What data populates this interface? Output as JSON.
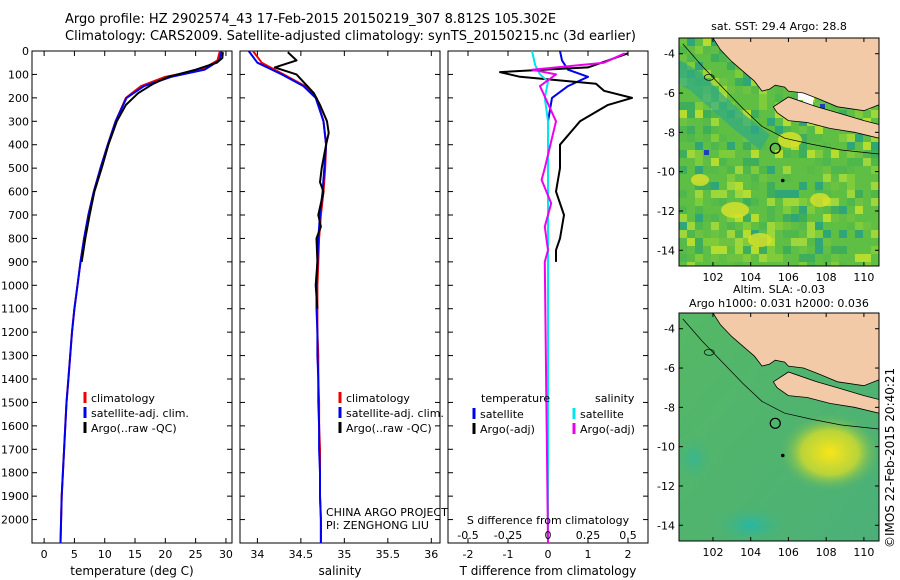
{
  "header": {
    "line1": "Argo profile: HZ 2902574_43 17-Feb-2015 20150219_307 8.812S 105.302E",
    "line2": "Climatology: CARS2009. Satellite-adjusted climatology: synTS_20150215.nc (3d earlier)"
  },
  "credit": "©IMOS 22-Feb-2015 20:40:21",
  "colors": {
    "clim": "#ee0000",
    "sat": "#0000ee",
    "argo": "#000000",
    "sat_s": "#00e5ee",
    "argo_s": "#ee00ee"
  },
  "chart_data": [
    {
      "type": "line",
      "name": "temperature-profile",
      "xlabel": "temperature (deg C)",
      "xlim": [
        -2,
        31
      ],
      "ylim": [
        2100,
        0
      ],
      "xticks": [
        0,
        5,
        10,
        15,
        20,
        25,
        30
      ],
      "yticks": [
        0,
        100,
        200,
        300,
        400,
        500,
        600,
        700,
        800,
        900,
        1000,
        1100,
        1200,
        1300,
        1400,
        1500,
        1600,
        1700,
        1800,
        1900,
        2000
      ],
      "legend": [
        "climatology",
        "satellite-adj. clim.",
        "Argo(..raw -QC)"
      ],
      "series": [
        {
          "name": "climatology",
          "color": "clim",
          "points": [
            [
              29.0,
              0
            ],
            [
              28.6,
              40
            ],
            [
              26.0,
              80
            ],
            [
              20.0,
              110
            ],
            [
              16.0,
              150
            ],
            [
              13.5,
              200
            ],
            [
              11.8,
              300
            ],
            [
              10.5,
              400
            ],
            [
              9.3,
              500
            ],
            [
              8.2,
              600
            ],
            [
              7.3,
              700
            ],
            [
              6.6,
              800
            ],
            [
              6.0,
              900
            ],
            [
              5.5,
              1000
            ],
            [
              5.0,
              1100
            ],
            [
              4.6,
              1200
            ],
            [
              4.3,
              1300
            ],
            [
              4.0,
              1400
            ],
            [
              3.7,
              1500
            ],
            [
              3.5,
              1600
            ],
            [
              3.3,
              1700
            ],
            [
              3.1,
              1800
            ],
            [
              2.9,
              1900
            ],
            [
              2.8,
              2000
            ],
            [
              2.7,
              2100
            ]
          ]
        },
        {
          "name": "satellite-adj. clim.",
          "color": "sat",
          "points": [
            [
              29.3,
              0
            ],
            [
              28.9,
              40
            ],
            [
              26.5,
              80
            ],
            [
              21.0,
              110
            ],
            [
              16.5,
              150
            ],
            [
              13.6,
              200
            ],
            [
              11.8,
              300
            ],
            [
              10.5,
              400
            ],
            [
              9.3,
              500
            ],
            [
              8.2,
              600
            ],
            [
              7.3,
              700
            ],
            [
              6.6,
              800
            ],
            [
              6.0,
              900
            ],
            [
              5.5,
              1000
            ],
            [
              5.0,
              1100
            ],
            [
              4.6,
              1200
            ],
            [
              4.3,
              1300
            ],
            [
              4.0,
              1400
            ],
            [
              3.7,
              1500
            ],
            [
              3.5,
              1600
            ],
            [
              3.3,
              1700
            ],
            [
              3.1,
              1800
            ],
            [
              2.9,
              1900
            ],
            [
              2.8,
              2000
            ],
            [
              2.7,
              2100
            ]
          ]
        },
        {
          "name": "Argo(..raw -QC)",
          "color": "argo",
          "points": [
            [
              29.5,
              5
            ],
            [
              29.4,
              30
            ],
            [
              28.5,
              50
            ],
            [
              25.0,
              80
            ],
            [
              20.5,
              110
            ],
            [
              18.0,
              140
            ],
            [
              15.5,
              180
            ],
            [
              13.5,
              230
            ],
            [
              12.0,
              300
            ],
            [
              10.6,
              400
            ],
            [
              9.5,
              500
            ],
            [
              8.3,
              600
            ],
            [
              7.5,
              700
            ],
            [
              6.8,
              800
            ],
            [
              6.2,
              900
            ]
          ]
        }
      ]
    },
    {
      "type": "line",
      "name": "salinity-profile",
      "xlabel": "salinity",
      "xlim": [
        33.8,
        36.1
      ],
      "ylim": [
        2100,
        0
      ],
      "xticks": [
        34,
        34.5,
        35,
        35.5,
        36
      ],
      "legend": [
        "climatology",
        "satellite-adj. clim.",
        "Argo(..raw -QC)"
      ],
      "annotation": [
        "CHINA ARGO PROJECT",
        "PI: ZENGHONG LIU"
      ],
      "series": [
        {
          "name": "climatology",
          "color": "clim",
          "points": [
            [
              33.95,
              0
            ],
            [
              34.05,
              50
            ],
            [
              34.3,
              100
            ],
            [
              34.55,
              150
            ],
            [
              34.68,
              200
            ],
            [
              34.76,
              300
            ],
            [
              34.79,
              400
            ],
            [
              34.78,
              500
            ],
            [
              34.76,
              600
            ],
            [
              34.73,
              700
            ],
            [
              34.71,
              800
            ],
            [
              34.7,
              900
            ],
            [
              34.69,
              1000
            ],
            [
              34.69,
              1100
            ],
            [
              34.69,
              1200
            ],
            [
              34.7,
              1300
            ],
            [
              34.7,
              1400
            ],
            [
              34.71,
              1500
            ],
            [
              34.71,
              1600
            ],
            [
              34.72,
              1700
            ],
            [
              34.72,
              1800
            ],
            [
              34.72,
              1900
            ],
            [
              34.73,
              2000
            ],
            [
              34.73,
              2100
            ]
          ]
        },
        {
          "name": "satellite-adj. clim.",
          "color": "sat",
          "points": [
            [
              33.9,
              0
            ],
            [
              34.0,
              50
            ],
            [
              34.28,
              100
            ],
            [
              34.53,
              150
            ],
            [
              34.67,
              200
            ],
            [
              34.76,
              300
            ],
            [
              34.79,
              400
            ],
            [
              34.77,
              500
            ],
            [
              34.75,
              600
            ],
            [
              34.72,
              700
            ],
            [
              34.7,
              800
            ],
            [
              34.69,
              900
            ],
            [
              34.68,
              1000
            ],
            [
              34.68,
              1100
            ],
            [
              34.69,
              1200
            ],
            [
              34.69,
              1300
            ],
            [
              34.7,
              1400
            ],
            [
              34.7,
              1500
            ],
            [
              34.71,
              1600
            ],
            [
              34.71,
              1700
            ],
            [
              34.72,
              1800
            ],
            [
              34.72,
              1900
            ],
            [
              34.73,
              2000
            ],
            [
              34.73,
              2100
            ]
          ]
        },
        {
          "name": "Argo(..raw -QC)",
          "color": "argo",
          "points": [
            [
              34.35,
              5
            ],
            [
              34.45,
              40
            ],
            [
              34.2,
              70
            ],
            [
              34.45,
              100
            ],
            [
              34.55,
              140
            ],
            [
              34.65,
              180
            ],
            [
              34.72,
              230
            ],
            [
              34.8,
              300
            ],
            [
              34.82,
              350
            ],
            [
              34.79,
              400
            ],
            [
              34.74,
              500
            ],
            [
              34.72,
              560
            ],
            [
              34.76,
              600
            ],
            [
              34.7,
              700
            ],
            [
              34.73,
              750
            ],
            [
              34.68,
              800
            ],
            [
              34.69,
              900
            ],
            [
              34.67,
              1000
            ],
            [
              34.69,
              1100
            ]
          ]
        }
      ]
    },
    {
      "type": "line",
      "name": "difference-profile",
      "xlabel": "T difference from climatology",
      "xlabel_top": "S difference from climatology",
      "xlim": [
        -2.5,
        2.5
      ],
      "xticks": [
        -2,
        -1,
        0,
        1,
        2
      ],
      "xticks_top": [
        "-0.5",
        "-0.25",
        "0",
        "0.25",
        "0.5"
      ],
      "legend_titles": [
        "temperature",
        "salinity"
      ],
      "legend": [
        "satellite",
        "Argo(-adj)",
        "satellite",
        "Argo(-adj)"
      ],
      "series": [
        {
          "name": "temperature satellite",
          "color": "sat",
          "points": [
            [
              0.3,
              0
            ],
            [
              0.35,
              40
            ],
            [
              0.5,
              80
            ],
            [
              1.0,
              110
            ],
            [
              0.5,
              150
            ],
            [
              0.1,
              200
            ],
            [
              0,
              300
            ],
            [
              0,
              600
            ],
            [
              0,
              2100
            ]
          ]
        },
        {
          "name": "temperature Argo(-adj)",
          "color": "argo",
          "points": [
            [
              2.0,
              10
            ],
            [
              1.5,
              40
            ],
            [
              1.0,
              70
            ],
            [
              -1.2,
              90
            ],
            [
              -0.7,
              110
            ],
            [
              1.2,
              140
            ],
            [
              1.4,
              170
            ],
            [
              2.1,
              200
            ],
            [
              1.5,
              230
            ],
            [
              0.8,
              300
            ],
            [
              0.3,
              400
            ],
            [
              0.3,
              500
            ],
            [
              0.2,
              600
            ],
            [
              0.4,
              700
            ],
            [
              0.3,
              800
            ],
            [
              0.2,
              850
            ],
            [
              0.2,
              900
            ]
          ]
        },
        {
          "name": "salinity satellite",
          "color": "sat_s",
          "points": [
            [
              -0.1,
              0
            ],
            [
              -0.08,
              60
            ],
            [
              -0.05,
              100
            ],
            [
              0,
              130
            ],
            [
              -0.02,
              200
            ],
            [
              0,
              300
            ],
            [
              0,
              600
            ],
            [
              0,
              2100
            ]
          ]
        },
        {
          "name": "salinity Argo(-adj)",
          "color": "argo_s",
          "points": [
            [
              0.48,
              10
            ],
            [
              0.35,
              50
            ],
            [
              -0.1,
              80
            ],
            [
              0.05,
              100
            ],
            [
              -0.05,
              150
            ],
            [
              0.05,
              300
            ],
            [
              -0.02,
              500
            ],
            [
              -0.04,
              550
            ],
            [
              0.02,
              650
            ],
            [
              -0.02,
              750
            ],
            [
              0,
              850
            ],
            [
              -0.02,
              900
            ],
            [
              0,
              2100
            ]
          ]
        }
      ]
    },
    {
      "type": "heatmap",
      "name": "sst-map",
      "title": "sat. SST: 29.4  Argo: 28.8",
      "xlim": [
        100.2,
        110.8
      ],
      "ylim": [
        -14.8,
        -3.2
      ],
      "xticks": [
        102,
        104,
        106,
        108,
        110
      ],
      "yticks": [
        -4,
        -6,
        -8,
        -10,
        -12,
        -14
      ],
      "argo_location": [
        105.302,
        -8.812
      ]
    },
    {
      "type": "heatmap",
      "name": "sla-map",
      "title": "Altim. SLA: -0.03",
      "subtitle": "Argo h1000: 0.031 h2000: 0.036",
      "xlim": [
        100.2,
        110.8
      ],
      "ylim": [
        -14.8,
        -3.2
      ],
      "xticks": [
        102,
        104,
        106,
        108,
        110
      ],
      "yticks": [
        -4,
        -6,
        -8,
        -10,
        -12,
        -14
      ],
      "argo_location": [
        105.302,
        -8.812
      ]
    }
  ]
}
